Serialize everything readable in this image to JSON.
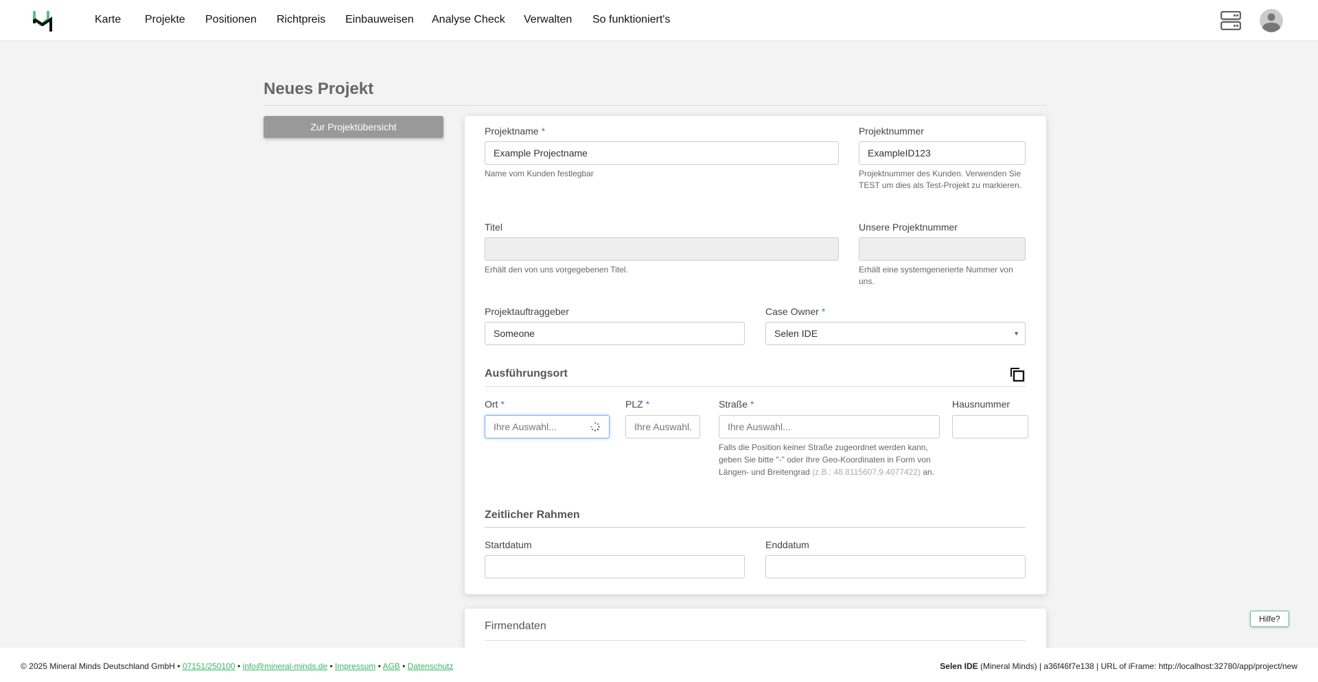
{
  "nav": {
    "items": [
      "Karte",
      "Projekte",
      "Positionen",
      "Richtpreis",
      "Einbauweisen",
      "Analyse Check",
      "Verwalten",
      "So funktioniert's"
    ]
  },
  "colors": {
    "brand_green": "#5cc184",
    "required": "#3a7bd5",
    "link": "#3cb56a"
  },
  "page": {
    "title": "Neues Projekt",
    "back_button": "Zur Projektübersicht"
  },
  "form": {
    "projektname": {
      "label": "Projektname",
      "required": "*",
      "value": "Example Projectname",
      "help": "Name vom Kunden festlegbar"
    },
    "projektnummer": {
      "label": "Projektnummer",
      "value": "ExampleID123",
      "help": "Projektnummer des Kunden. Verwenden Sie TEST um dies als Test-Projekt zu markieren."
    },
    "titel": {
      "label": "Titel",
      "value": "",
      "help": "Erhält den von uns vorgegebenen Titel."
    },
    "unsere_nummer": {
      "label": "Unsere Projektnummer",
      "value": "",
      "help": "Erhält eine systemgenerierte Nummer von uns."
    },
    "auftraggeber": {
      "label": "Projektauftraggeber",
      "value": "Someone"
    },
    "case_owner": {
      "label": "Case Owner",
      "required": "*",
      "value": "Selen IDE"
    },
    "ausfuehrungsort": {
      "title": "Ausführungsort"
    },
    "ort": {
      "label": "Ort",
      "required": "*",
      "placeholder": "Ihre Auswahl..."
    },
    "plz": {
      "label": "PLZ",
      "required": "*",
      "placeholder": "Ihre Auswahl..."
    },
    "strasse": {
      "label": "Straße",
      "required": "*",
      "placeholder": "Ihre Auswahl...",
      "help": "Falls die Position keiner Straße zugeordnet werden kann, geben Sie bitte \"-\" oder Ihre Geo-Koordinaten in Form von Längen- und Breitengrad",
      "help_example": "(z.B.: 48.8115607,9.4077422)",
      "help_end": " an."
    },
    "hausnummer": {
      "label": "Hausnummer",
      "value": ""
    },
    "zeitlicher_rahmen": {
      "title": "Zeitlicher Rahmen"
    },
    "startdatum": {
      "label": "Startdatum",
      "value": ""
    },
    "enddatum": {
      "label": "Enddatum",
      "value": ""
    }
  },
  "firmendaten": {
    "title": "Firmendaten"
  },
  "help_bubble": "Hilfe?",
  "footer": {
    "copyright": "© 2025 Mineral Minds Deutschland GmbH •",
    "phone": "07151/250100",
    "email": "info@mineral-minds.de",
    "impressum": "Impressum",
    "agb": "AGB",
    "datenschutz": "Datenschutz",
    "sep": " • ",
    "user": "Selen IDE",
    "right": " (Mineral Minds) | a36f46f7e138 | URL of iFrame: http://localhost:32780/app/project/new"
  }
}
